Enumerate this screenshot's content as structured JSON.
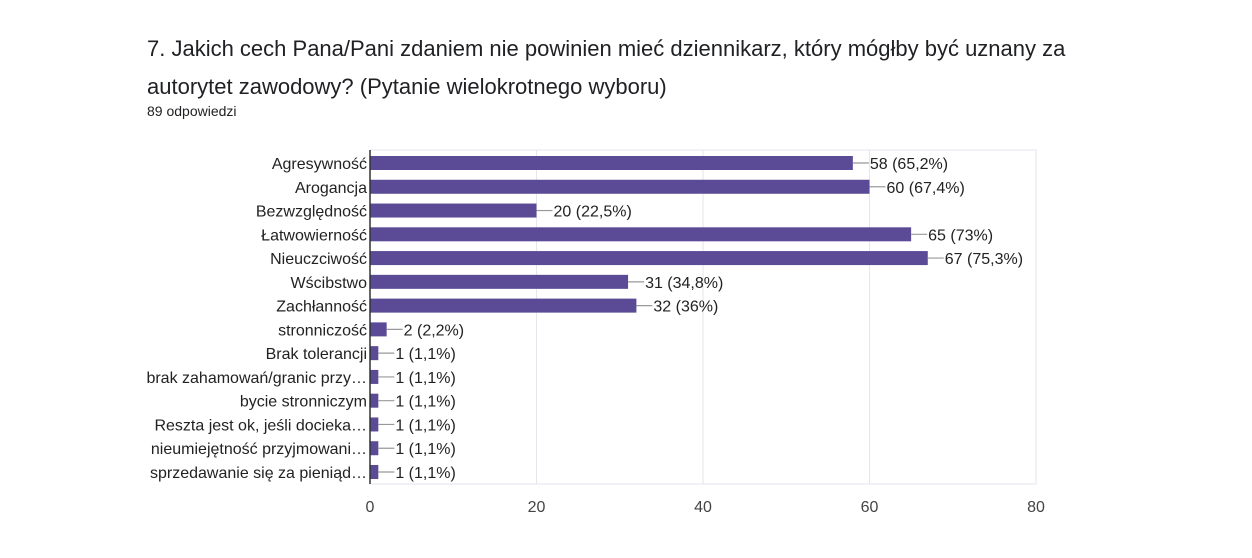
{
  "question": {
    "title": "7. Jakich cech Pana/Pani zdaniem nie powinien mieć dziennikarz, który mógłby być uznany za autorytet zawodowy? (Pytanie wielokrotnego wyboru)",
    "responses": "89 odpowiedzi"
  },
  "colors": {
    "bar": "#5b4a96",
    "grid": "#e6e6ec",
    "leader": "#999999"
  },
  "chart_data": {
    "type": "bar",
    "orientation": "horizontal",
    "categories": [
      "Agresywność",
      "Arogancja",
      "Bezwzględność",
      "Łatwowierność",
      "Nieuczciwość",
      "Wścibstwo",
      "Zachłanność",
      "stronniczość",
      "Brak tolerancji",
      "brak zahamowań/granic przy…",
      "bycie stronniczym",
      "Reszta jest ok, jeśli docieka…",
      "nieumiejętność przyjmowani…",
      "sprzedawanie się za pieniąd…"
    ],
    "values": [
      58,
      60,
      20,
      65,
      67,
      31,
      32,
      2,
      1,
      1,
      1,
      1,
      1,
      1
    ],
    "data_labels": [
      "58 (65,2%)",
      "60 (67,4%)",
      "20 (22,5%)",
      "65 (73%)",
      "67 (75,3%)",
      "31 (34,8%)",
      "32 (36%)",
      "2 (2,2%)",
      "1 (1,1%)",
      "1 (1,1%)",
      "1 (1,1%)",
      "1 (1,1%)",
      "1 (1,1%)",
      "1 (1,1%)"
    ],
    "xlim": [
      0,
      80
    ],
    "xticks": [
      "0",
      "20",
      "40",
      "60",
      "80"
    ],
    "grid": true,
    "legend": "none"
  }
}
